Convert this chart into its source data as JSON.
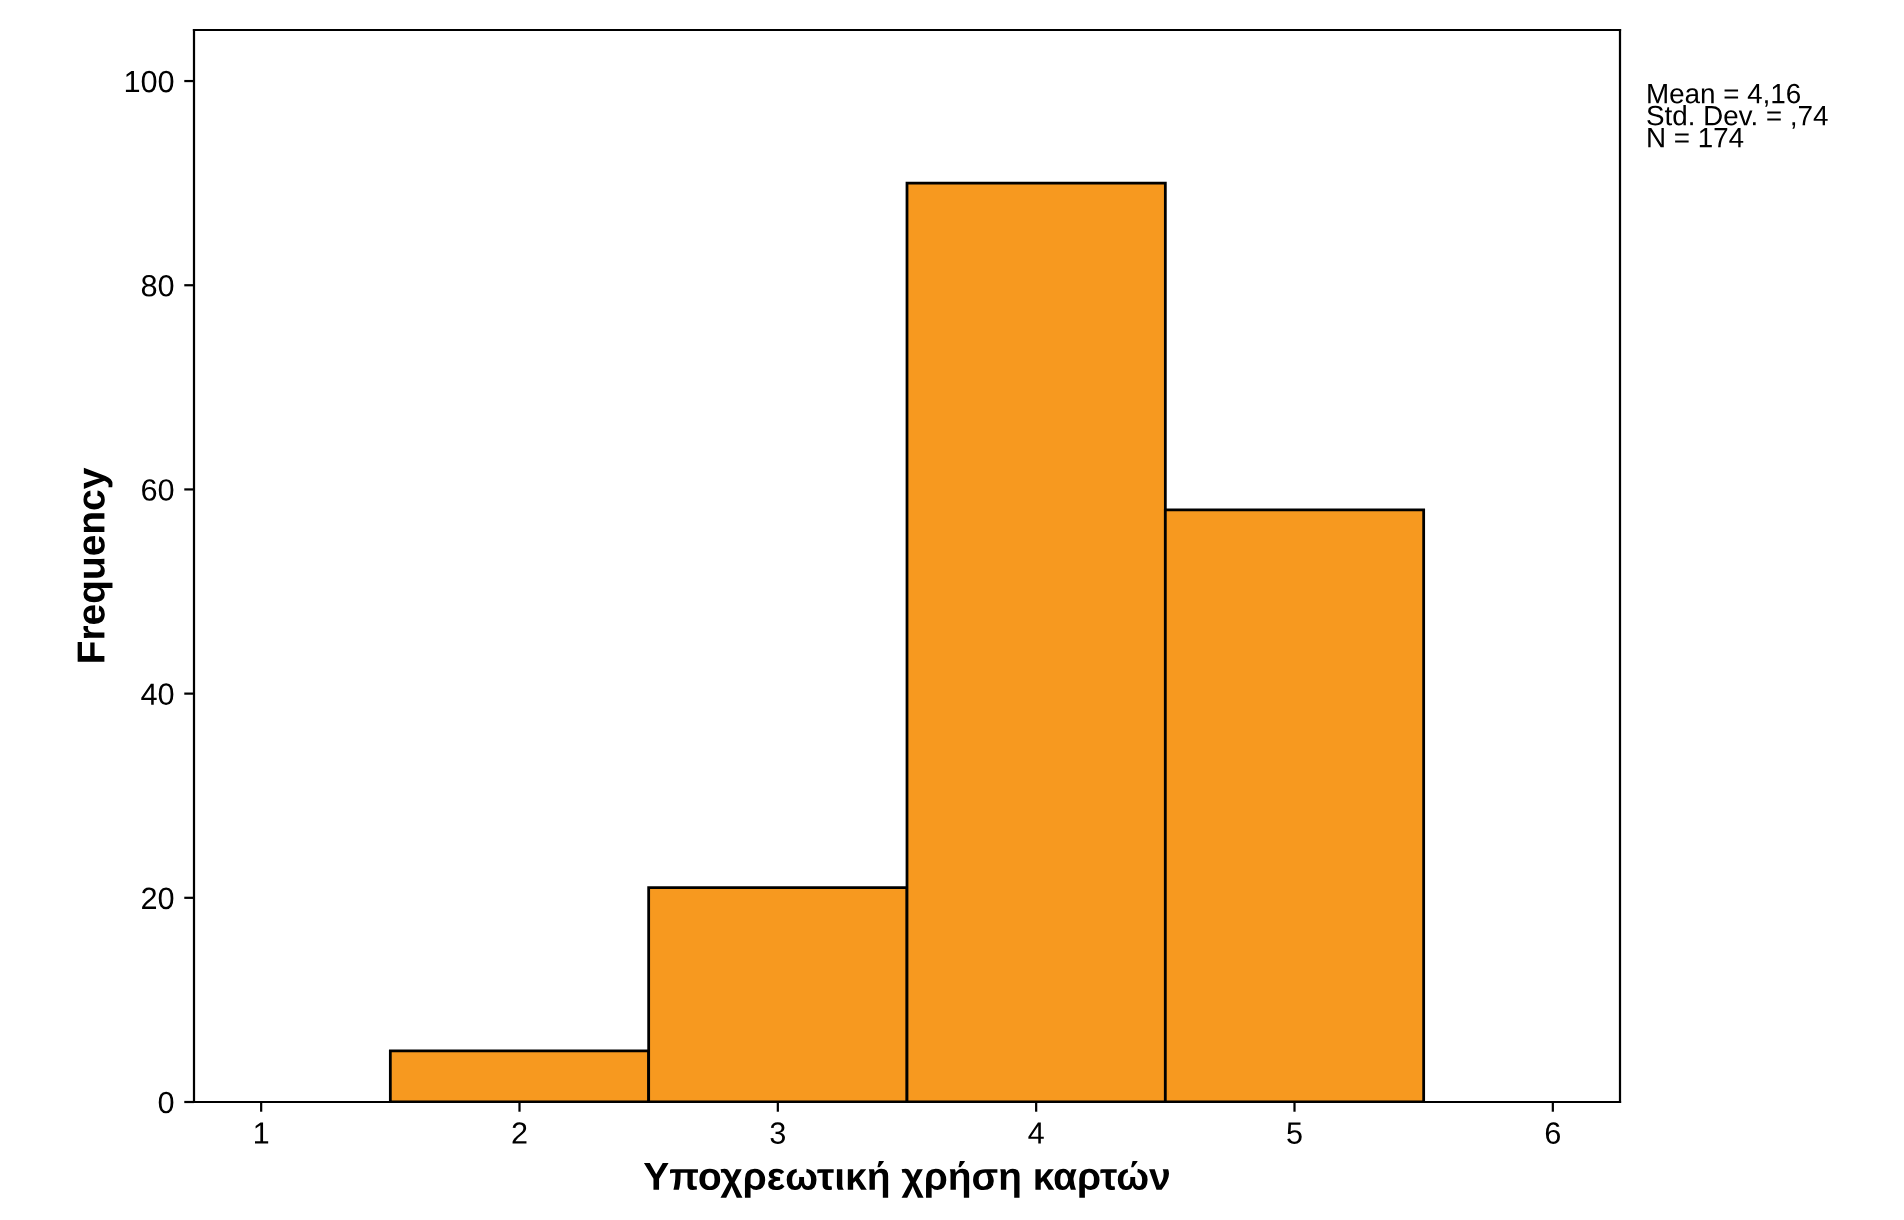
{
  "chart_data": {
    "type": "histogram",
    "xlabel": "Υποχρεωτική χρήση καρτών",
    "ylabel": "Frequency",
    "bins": [
      1.5,
      2.5,
      3.5,
      4.5,
      5.5
    ],
    "values": [
      5,
      21,
      90,
      58
    ],
    "color": "#f7991f",
    "xlim": [
      0.74,
      6.26
    ],
    "xticks": [
      1,
      2,
      3,
      4,
      5,
      6
    ],
    "ylim": [
      0,
      105
    ],
    "yticks": [
      0,
      20,
      40,
      60,
      80,
      100
    ],
    "annotations": [
      "Mean = 4,16",
      "Std. Dev. = ,74",
      "N = 174"
    ],
    "grid": false,
    "legend": false
  }
}
